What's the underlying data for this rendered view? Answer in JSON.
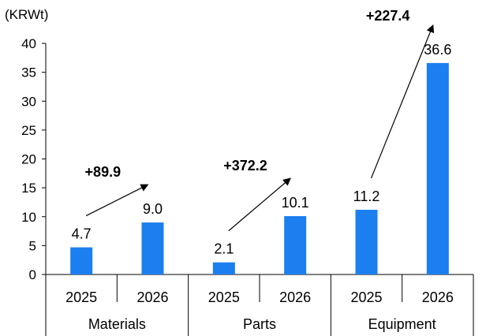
{
  "chart_data": {
    "type": "bar",
    "unit_label": "(KRWt)",
    "groups": [
      {
        "name": "Materials",
        "years": [
          "2025",
          "2026"
        ],
        "values": [
          4.7,
          9.0
        ],
        "value_labels": [
          "4.7",
          "9.0"
        ],
        "growth": "+89.9"
      },
      {
        "name": "Parts",
        "years": [
          "2025",
          "2026"
        ],
        "values": [
          2.1,
          10.1
        ],
        "value_labels": [
          "2.1",
          "10.1"
        ],
        "growth": "+372.2"
      },
      {
        "name": "Equipment",
        "years": [
          "2025",
          "2026"
        ],
        "values": [
          11.2,
          36.6
        ],
        "value_labels": [
          "11.2",
          "36.6"
        ],
        "growth": "+227.4"
      }
    ],
    "ylim": [
      0,
      40
    ],
    "yticks": [
      0,
      5,
      10,
      15,
      20,
      25,
      30,
      35,
      40
    ],
    "grid": false,
    "legend": "none",
    "colors": {
      "bar": "#1c7ff0",
      "axis": "#000000"
    }
  }
}
